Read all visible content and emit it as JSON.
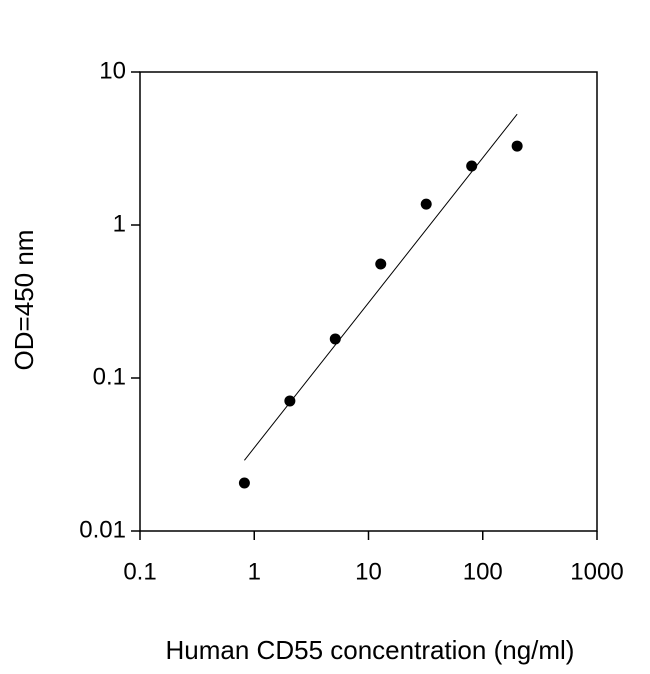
{
  "chart_data": {
    "type": "scatter",
    "x_label": "Human CD55 concentration (ng/ml)",
    "y_label": "OD=450 nm",
    "xscale": "log",
    "yscale": "log",
    "xlim": [
      0.1,
      1000
    ],
    "xticks": [
      0.1,
      1,
      10,
      100,
      1000
    ],
    "ylim": [
      0.01,
      10
    ],
    "yticks": [
      0.01,
      0.1,
      1,
      10
    ],
    "color": "#000000",
    "x": [
      0.82,
      2.05,
      5.12,
      12.8,
      32,
      80,
      200
    ],
    "values": [
      0.0206,
      0.0708,
      0.18,
      0.556,
      1.37,
      2.43,
      3.28
    ],
    "fit": {
      "x": [
        0.82,
        200
      ],
      "values": [
        0.029,
        5.3
      ],
      "color": "#000000"
    }
  }
}
